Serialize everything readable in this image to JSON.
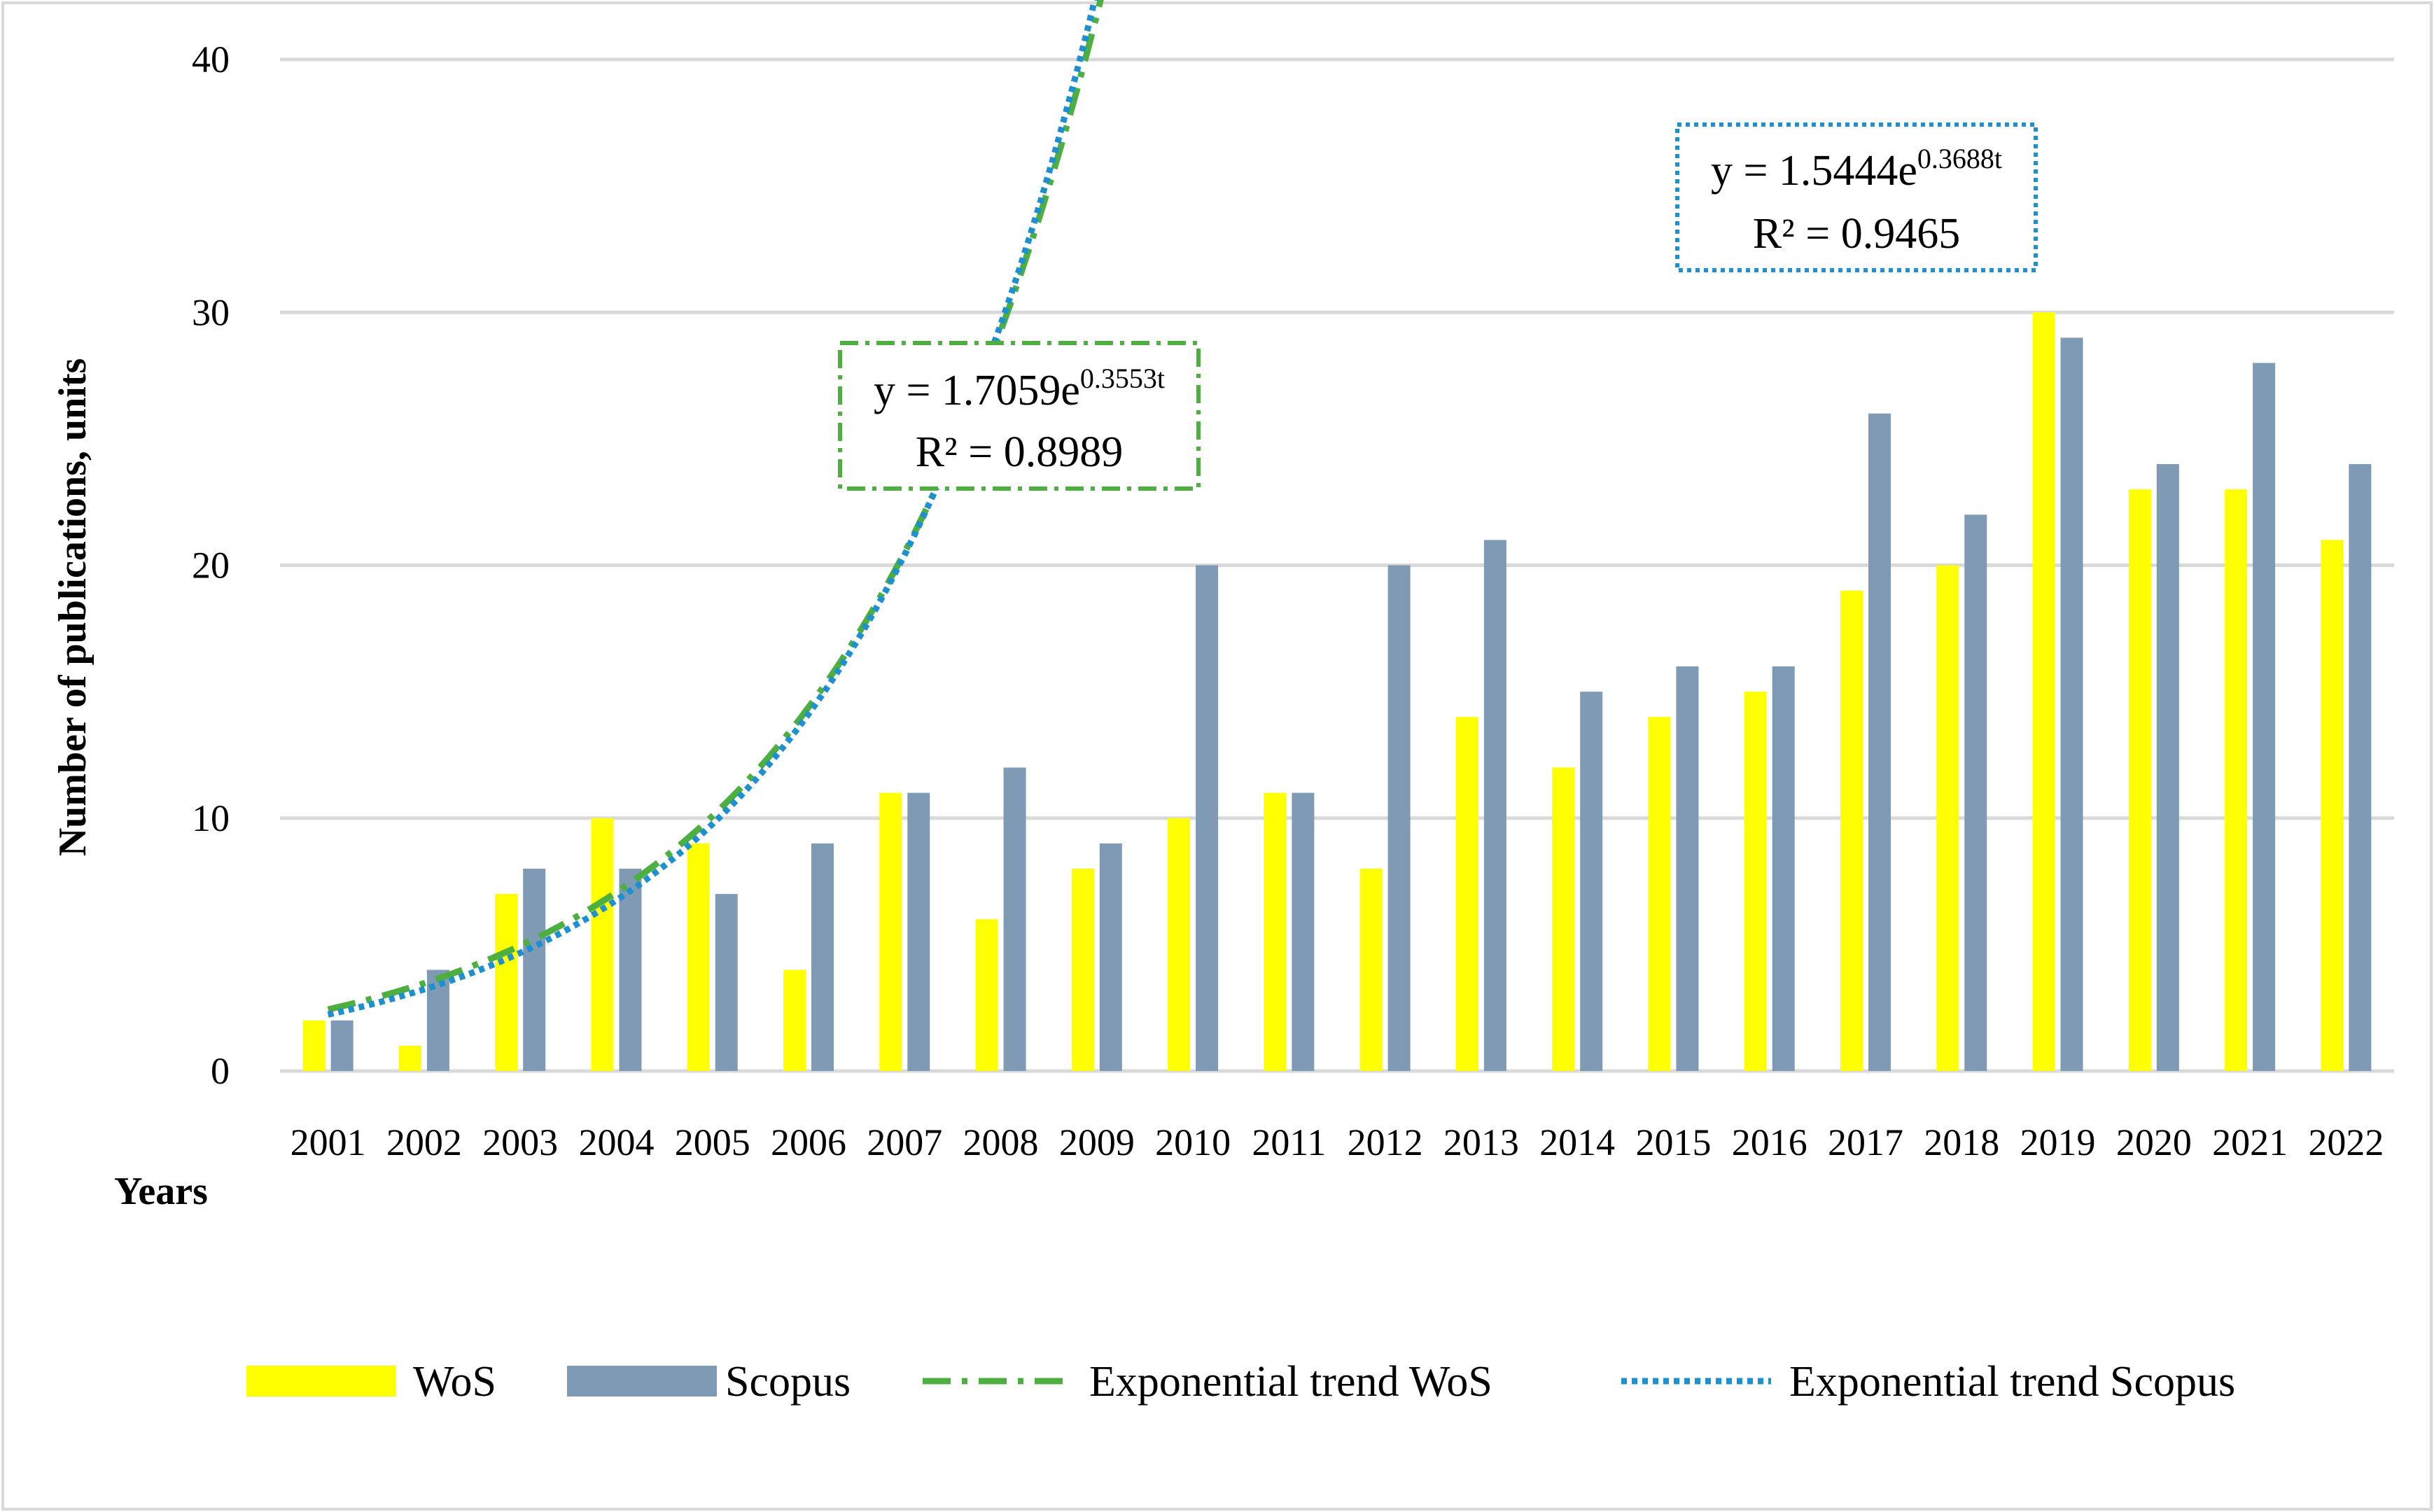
{
  "chart_data": {
    "type": "bar",
    "title": "",
    "ylabel": "Number of publications, units",
    "xlabel": "Years",
    "ylim": [
      0,
      40
    ],
    "yticks": [
      0,
      10,
      20,
      30,
      40
    ],
    "grid": true,
    "categories": [
      "2001",
      "2002",
      "2003",
      "2004",
      "2005",
      "2006",
      "2007",
      "2008",
      "2009",
      "2010",
      "2011",
      "2012",
      "2013",
      "2014",
      "2015",
      "2016",
      "2017",
      "2018",
      "2019",
      "2020",
      "2021",
      "2022"
    ],
    "series": [
      {
        "name": "WoS",
        "color": "#FFFF00",
        "values": [
          2,
          1,
          7,
          10,
          9,
          4,
          11,
          6,
          8,
          10,
          11,
          8,
          14,
          12,
          14,
          15,
          19,
          20,
          30,
          23,
          23,
          21
        ]
      },
      {
        "name": "Scopus",
        "color": "#7F9AB5",
        "values": [
          2,
          4,
          8,
          8,
          7,
          9,
          11,
          12,
          9,
          20,
          11,
          20,
          21,
          15,
          16,
          16,
          26,
          22,
          29,
          24,
          28,
          24
        ]
      }
    ],
    "trendlines": [
      {
        "name": "Exponential trend WoS",
        "color": "#4CAF3F",
        "style": "dash-dot",
        "a": 1.7059,
        "b": 0.3553,
        "equation": "y = 1.7059e",
        "exponent": "0.3553t",
        "r2": "R² = 0.8989"
      },
      {
        "name": "Exponential trend Scopus",
        "color": "#1E90D0",
        "style": "dotted",
        "a": 1.5444,
        "b": 0.3688,
        "equation": "y = 1.5444e",
        "exponent": "0.3688t",
        "r2": "R² = 0.9465"
      }
    ],
    "legend_position": "bottom"
  }
}
